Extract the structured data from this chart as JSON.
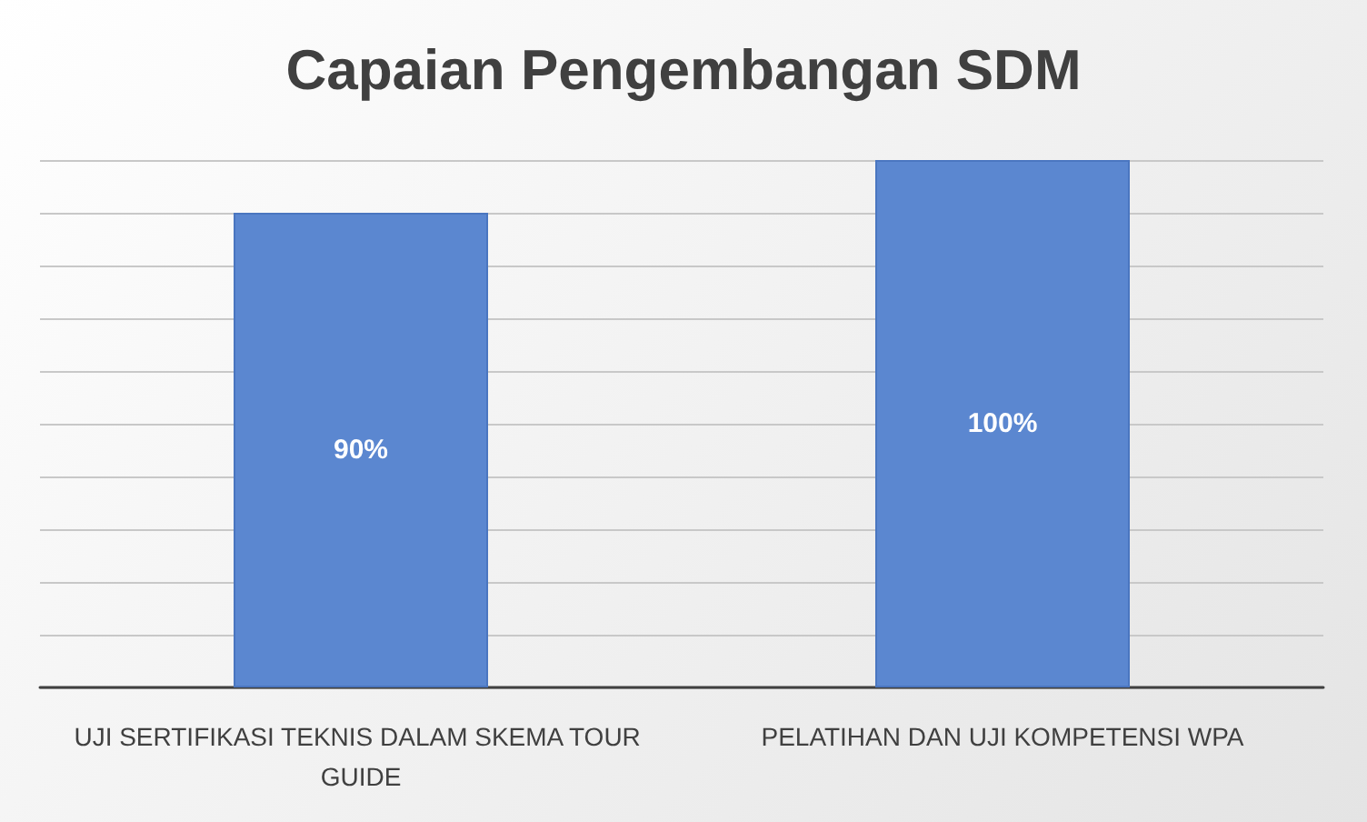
{
  "chart_data": {
    "type": "bar",
    "title": "Capaian Pengembangan SDM",
    "categories": [
      "UJI SERTIFIKASI TEKNIS DALAM SKEMA TOUR GUIDE",
      "PELATIHAN DAN UJI KOMPETENSI WPA"
    ],
    "values": [
      90,
      100
    ],
    "value_labels": [
      "90%",
      "100%"
    ],
    "color": "#5b87d0",
    "grid": true
  }
}
